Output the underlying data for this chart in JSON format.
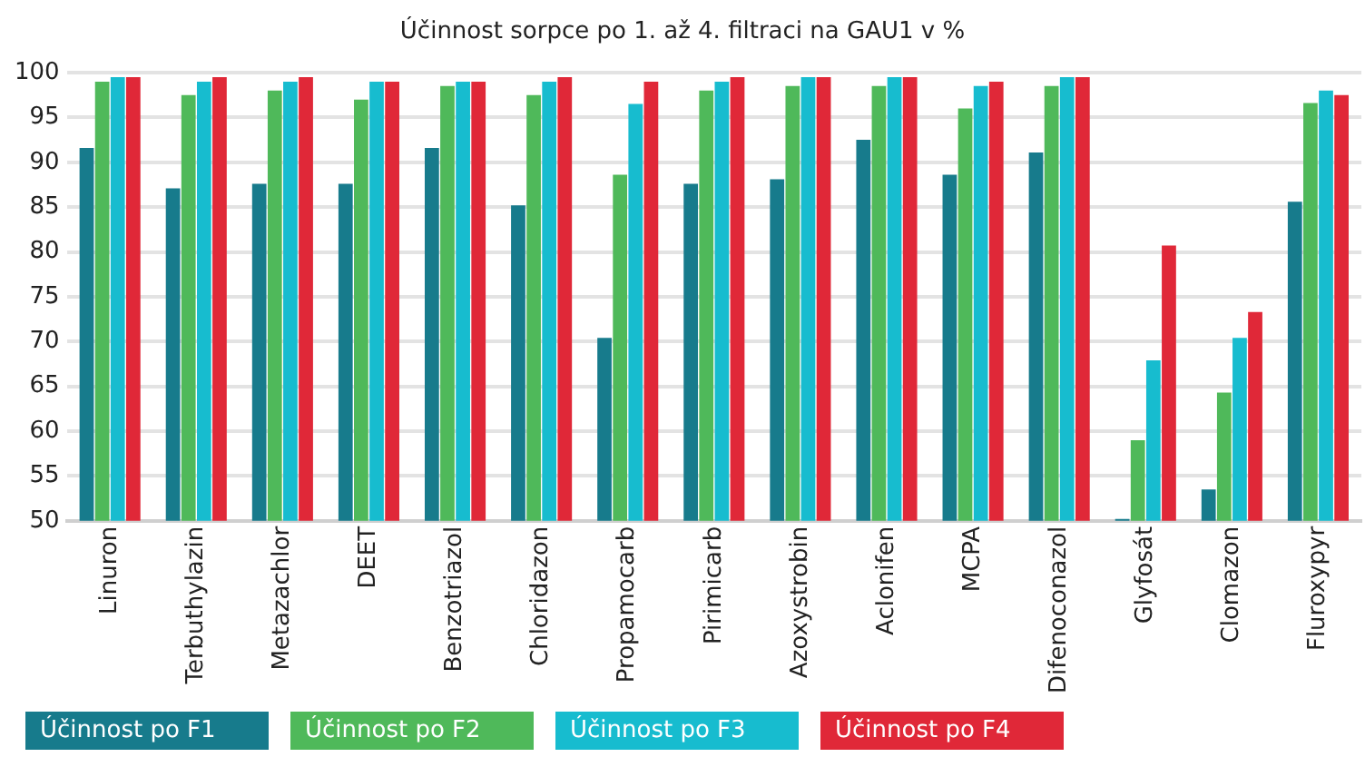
{
  "chart_data": {
    "type": "bar",
    "title": "Účinnost sorpce po 1. až 4. filtraci na GAU1 v %",
    "categories": [
      "Linuron",
      "Terbuthylazin",
      "Metazachlor",
      "DEET",
      "Benzotriazol",
      "Chloridazon",
      "Propamocarb",
      "Pirimicarb",
      "Azoxystrobin",
      "Aclonifen",
      "MCPA",
      "Difenoconazol",
      "Glyfosát",
      "Clomazon",
      "Fluroxypyr"
    ],
    "series": [
      {
        "name": "Účinnost po F1",
        "color": "#177b8c",
        "values": [
          91.6,
          87.1,
          87.6,
          87.6,
          91.6,
          85.2,
          70.4,
          87.6,
          88.1,
          92.5,
          88.6,
          91.1,
          50.2,
          53.5,
          85.6
        ]
      },
      {
        "name": "Účinnost po F2",
        "color": "#4fb95a",
        "values": [
          99,
          97.5,
          98,
          97,
          98.5,
          97.5,
          88.6,
          98,
          98.5,
          98.5,
          96,
          98.5,
          59,
          64.3,
          96.6
        ]
      },
      {
        "name": "Účinnost po F3",
        "color": "#17bccf",
        "values": [
          99.5,
          99,
          99,
          99,
          99,
          99,
          96.5,
          99,
          99.5,
          99.5,
          98.5,
          99.5,
          67.9,
          70.4,
          98
        ]
      },
      {
        "name": "Účinnost po F4",
        "color": "#e02838",
        "values": [
          99.5,
          99.5,
          99.5,
          99,
          99,
          99.5,
          99,
          99.5,
          99.5,
          99.5,
          99,
          99.5,
          80.7,
          73.3,
          97.5
        ]
      }
    ],
    "ylim": [
      50,
      100
    ],
    "yticks": [
      50,
      55,
      60,
      65,
      70,
      75,
      80,
      85,
      90,
      95,
      100
    ],
    "grid": "y",
    "legend": "bottom left"
  }
}
